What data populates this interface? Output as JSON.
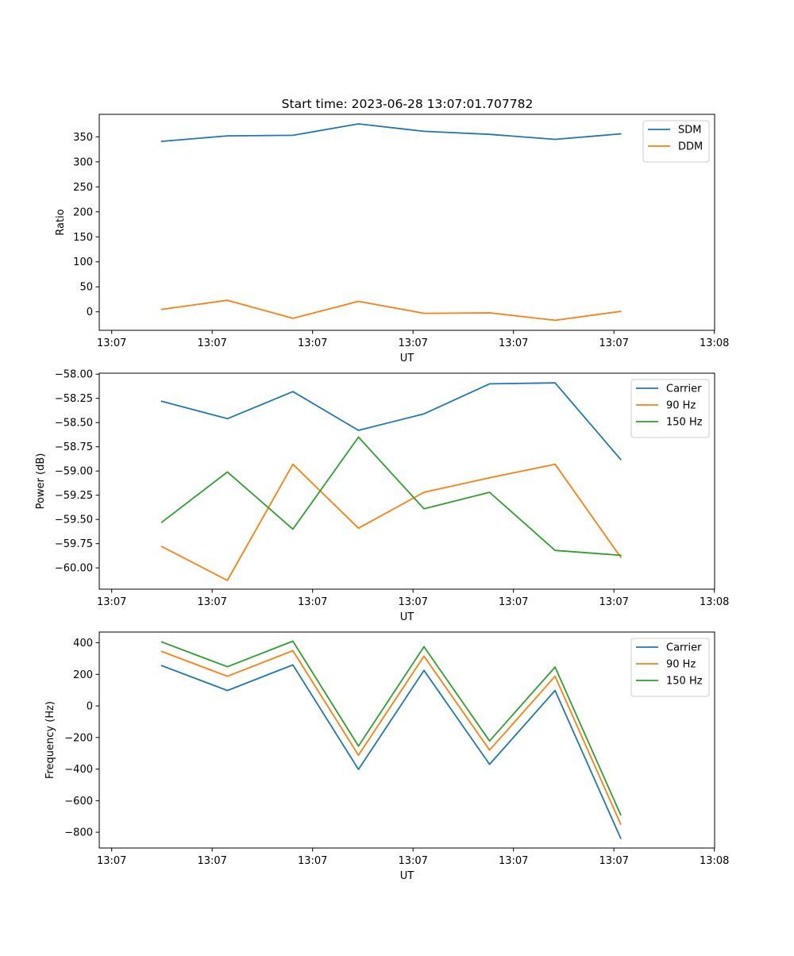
{
  "chart_data": [
    {
      "type": "line",
      "title": "Start time: 2023-06-28 13:07:01.707782",
      "xlabel": "UT",
      "ylabel": "Ratio",
      "x_tick_labels": [
        "13:07",
        "13:07",
        "13:07",
        "13:07",
        "13:07",
        "13:07",
        "13:08"
      ],
      "x_points": 8,
      "yticks": [
        0,
        50,
        100,
        150,
        200,
        250,
        300,
        350
      ],
      "ytick_labels": [
        "0",
        "50",
        "100",
        "150",
        "200",
        "250",
        "300",
        "350"
      ],
      "ylim": [
        -37,
        395
      ],
      "legend_position": "top-right",
      "series": [
        {
          "name": "SDM",
          "color": "#1f77b4",
          "values": [
            341,
            352,
            353,
            376,
            361,
            355,
            345,
            356
          ]
        },
        {
          "name": "DDM",
          "color": "#ff7f0e",
          "values": [
            5,
            23,
            -13,
            21,
            -3,
            -2,
            -17,
            1
          ]
        }
      ]
    },
    {
      "type": "line",
      "title": "",
      "xlabel": "UT",
      "ylabel": "Power (dB)",
      "x_tick_labels": [
        "13:07",
        "13:07",
        "13:07",
        "13:07",
        "13:07",
        "13:07",
        "13:08"
      ],
      "x_points": 8,
      "yticks": [
        -60.0,
        -59.75,
        -59.5,
        -59.25,
        -59.0,
        -58.75,
        -58.5,
        -58.25,
        -58.0
      ],
      "ytick_labels": [
        "−60.00",
        "−59.75",
        "−59.50",
        "−59.25",
        "−59.00",
        "−58.75",
        "−58.50",
        "−58.25",
        "−58.00"
      ],
      "ylim": [
        -60.22,
        -57.99
      ],
      "legend_position": "top-right",
      "series": [
        {
          "name": "Carrier",
          "color": "#1f77b4",
          "values": [
            -58.28,
            -58.46,
            -58.18,
            -58.58,
            -58.41,
            -58.1,
            -58.09,
            -58.88
          ]
        },
        {
          "name": "90 Hz",
          "color": "#ff7f0e",
          "values": [
            -59.78,
            -60.13,
            -58.93,
            -59.59,
            -59.22,
            -59.07,
            -58.93,
            -59.89
          ]
        },
        {
          "name": "150 Hz",
          "color": "#2ca02c",
          "values": [
            -59.53,
            -59.01,
            -59.6,
            -58.65,
            -59.39,
            -59.22,
            -59.82,
            -59.87
          ]
        }
      ]
    },
    {
      "type": "line",
      "title": "",
      "xlabel": "UT",
      "ylabel": "Frequency (Hz)",
      "x_tick_labels": [
        "13:07",
        "13:07",
        "13:07",
        "13:07",
        "13:07",
        "13:07",
        "13:08"
      ],
      "x_points": 8,
      "yticks": [
        -800,
        -600,
        -400,
        -200,
        0,
        200,
        400
      ],
      "ytick_labels": [
        "−800",
        "−600",
        "−400",
        "−200",
        "0",
        "200",
        "400"
      ],
      "ylim": [
        -900,
        468
      ],
      "legend_position": "top-right",
      "series": [
        {
          "name": "Carrier",
          "color": "#1f77b4",
          "values": [
            255,
            98,
            260,
            -402,
            225,
            -370,
            98,
            -838
          ]
        },
        {
          "name": "90 Hz",
          "color": "#ff7f0e",
          "values": [
            345,
            188,
            350,
            -312,
            315,
            -280,
            188,
            -748
          ]
        },
        {
          "name": "150 Hz",
          "color": "#2ca02c",
          "values": [
            405,
            248,
            410,
            -254,
            375,
            -222,
            246,
            -690
          ]
        }
      ]
    }
  ]
}
